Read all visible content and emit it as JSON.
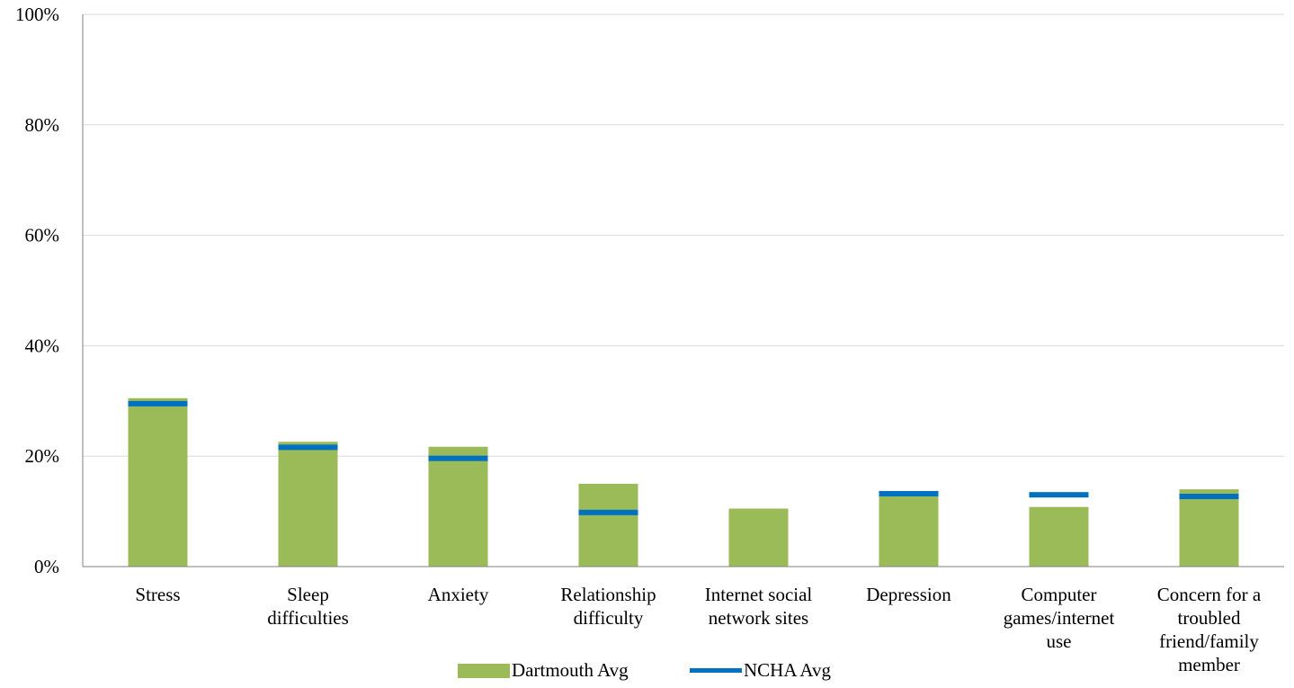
{
  "chart_data": {
    "type": "bar",
    "categories": [
      [
        "Stress"
      ],
      [
        "Sleep",
        "difficulties"
      ],
      [
        "Anxiety"
      ],
      [
        "Relationship",
        "difficulty"
      ],
      [
        "Internet social",
        "network sites"
      ],
      [
        "Depression"
      ],
      [
        "Computer",
        "games/internet",
        "use"
      ],
      [
        "Concern for a",
        "troubled",
        "friend/family",
        "member"
      ]
    ],
    "series": [
      {
        "name": "Dartmouth Avg",
        "kind": "bar",
        "values": [
          30.5,
          22.6,
          21.7,
          15.0,
          10.5,
          13.5,
          10.8,
          14.0
        ]
      },
      {
        "name": "NCHA Avg",
        "kind": "marker-line",
        "values": [
          29.5,
          21.6,
          19.6,
          9.8,
          null,
          13.2,
          13.0,
          12.7
        ]
      }
    ],
    "ylim": [
      0,
      100
    ],
    "yticks": [
      "0%",
      "20%",
      "40%",
      "60%",
      "80%",
      "100%"
    ],
    "ytick_values": [
      0,
      20,
      40,
      60,
      80,
      100
    ],
    "grid": true,
    "legend_position": "bottom-center",
    "colors": {
      "bar": "#9bbb59",
      "line": "#0070c0",
      "grid": "#d9d9d9",
      "axis": "#808080"
    },
    "title": "",
    "xlabel": "",
    "ylabel": ""
  }
}
